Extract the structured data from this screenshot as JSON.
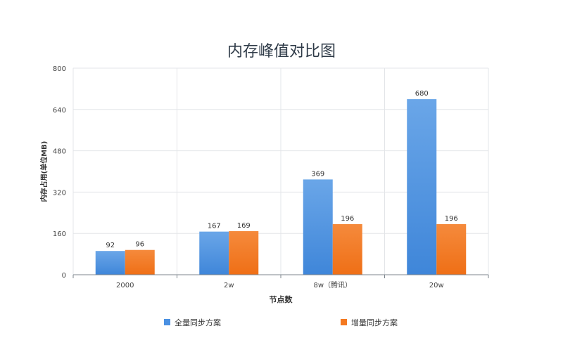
{
  "chart_data": {
    "type": "bar",
    "title": "内存峰值对比图",
    "xlabel": "节点数",
    "ylabel": "内存占用(单位MB)",
    "categories": [
      "2000",
      "2w",
      "8w（腾讯）",
      "20w"
    ],
    "ylim": [
      0,
      800
    ],
    "yticks": [
      0,
      160,
      320,
      480,
      640,
      800
    ],
    "grid": true,
    "legend_position": "bottom",
    "series": [
      {
        "name": "全量同步方案",
        "values": [
          92,
          167,
          369,
          680
        ],
        "color": "#4a90e2"
      },
      {
        "name": "增量同步方案",
        "values": [
          96,
          169,
          196,
          196
        ],
        "color": "#f47920"
      }
    ]
  }
}
